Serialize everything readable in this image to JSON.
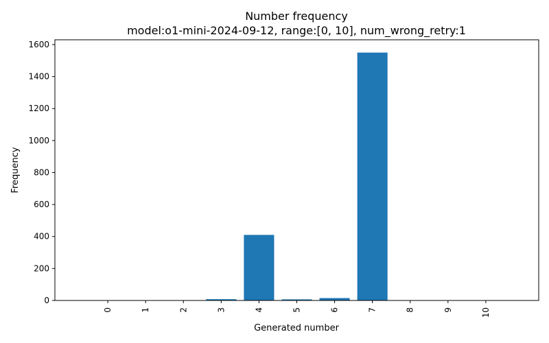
{
  "chart_data": {
    "type": "bar",
    "title": "Number frequency",
    "subtitle": "model:o1-mini-2024-09-12, range:[0, 10], num_wrong_retry:1",
    "xlabel": "Generated number",
    "ylabel": "Frequency",
    "categories": [
      "0",
      "1",
      "2",
      "3",
      "4",
      "5",
      "6",
      "7",
      "8",
      "9",
      "10"
    ],
    "values": [
      0,
      0,
      0,
      8,
      410,
      7,
      15,
      1550,
      0,
      0,
      0
    ],
    "ylim": [
      0,
      1630
    ],
    "yticks": [
      "0",
      "200",
      "400",
      "600",
      "800",
      "1000",
      "1200",
      "1400",
      "1600"
    ],
    "x_tick_rotation": "vertical",
    "grid": false,
    "legend": "none",
    "bar_color": "#1f77b4"
  }
}
